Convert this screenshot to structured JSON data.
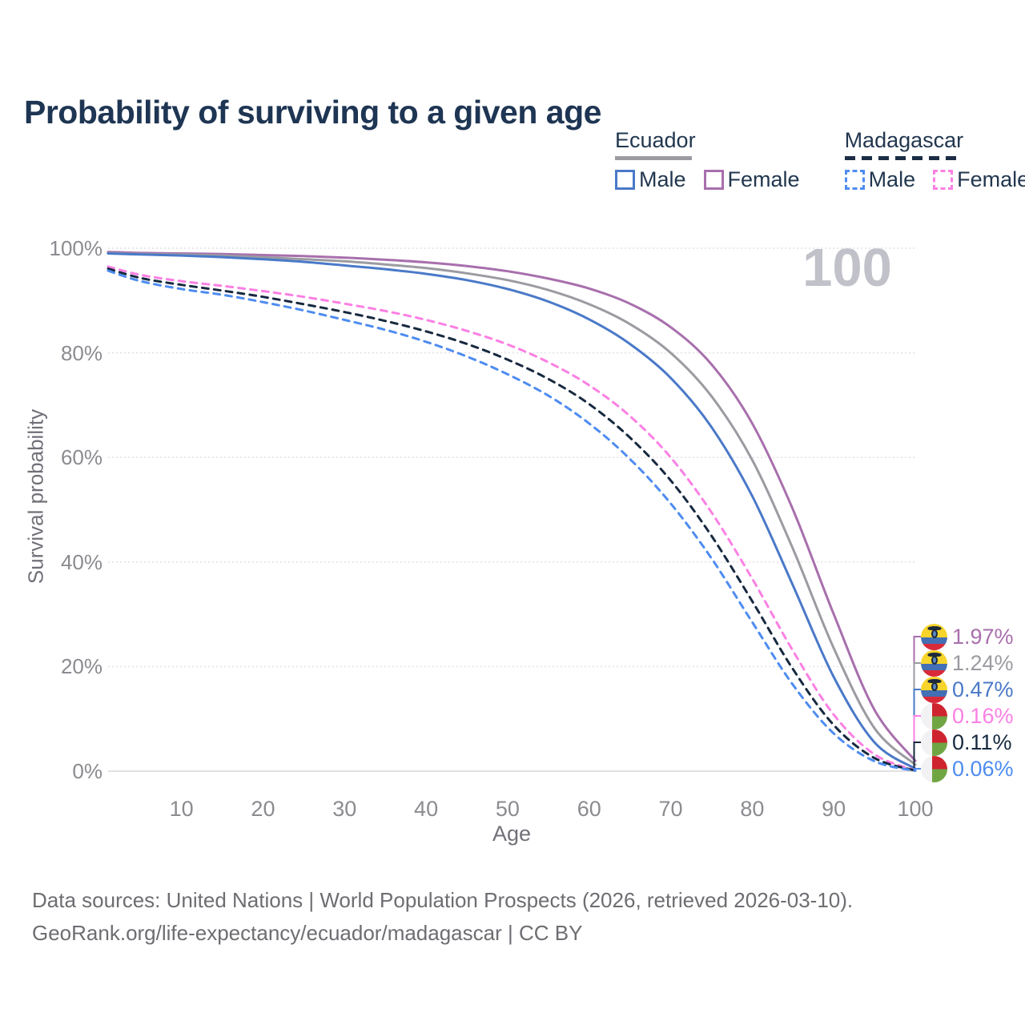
{
  "title": "Probability of surviving to a given age",
  "watermark": "100",
  "legend": {
    "groups": [
      {
        "label": "Ecuador",
        "line_style": "solid",
        "line_color": "#9b9ba1",
        "items": [
          {
            "label": "Male",
            "color": "#4a79c8"
          },
          {
            "label": "Female",
            "color": "#a86fad"
          }
        ]
      },
      {
        "label": "Madagascar",
        "line_style": "dashed",
        "line_color": "#1b2c44",
        "items": [
          {
            "label": "Male",
            "color": "#4e8cf0"
          },
          {
            "label": "Female",
            "color": "#fb80e3"
          }
        ]
      }
    ]
  },
  "chart_data": {
    "type": "line",
    "title": "Probability of surviving to a given age",
    "xlabel": "Age",
    "ylabel": "Survival probability",
    "xlim": [
      1,
      100
    ],
    "ylim": [
      0,
      100
    ],
    "x_ticks": [
      10,
      20,
      30,
      40,
      50,
      60,
      70,
      80,
      90,
      100
    ],
    "y_ticks": [
      0,
      20,
      40,
      60,
      80,
      100
    ],
    "y_tick_labels": [
      "0%",
      "20%",
      "40%",
      "60%",
      "80%",
      "100%"
    ],
    "grid": "horizontal",
    "legend_position": "top-right",
    "hover_age": 100,
    "x": [
      1,
      5,
      10,
      15,
      20,
      25,
      30,
      35,
      40,
      45,
      50,
      55,
      60,
      65,
      70,
      75,
      80,
      85,
      90,
      95,
      100
    ],
    "series": [
      {
        "name": "Ecuador Female",
        "country": "Ecuador",
        "sex": "Female",
        "color": "#a86fad",
        "dash": false,
        "flag": "ecuador",
        "end_label": "1.97%",
        "values": [
          99.3,
          99.1,
          99.0,
          98.9,
          98.7,
          98.5,
          98.2,
          97.8,
          97.3,
          96.6,
          95.6,
          94.2,
          92.3,
          89.4,
          84.9,
          77.8,
          66.5,
          50.0,
          30.0,
          11.7,
          1.97
        ]
      },
      {
        "name": "Ecuador",
        "country": "Ecuador",
        "sex": "Both sexes",
        "color": "#9b9ba1",
        "dash": false,
        "flag": "ecuador",
        "end_label": "1.24%",
        "values": [
          99.1,
          98.9,
          98.8,
          98.6,
          98.3,
          97.9,
          97.5,
          96.9,
          96.2,
          95.2,
          93.9,
          92.0,
          89.3,
          85.5,
          80.0,
          71.7,
          59.5,
          42.5,
          23.5,
          8.2,
          1.24
        ]
      },
      {
        "name": "Ecuador Male",
        "country": "Ecuador",
        "sex": "Male",
        "color": "#4a79c8",
        "dash": false,
        "flag": "ecuador",
        "end_label": "0.47%",
        "values": [
          99.0,
          98.8,
          98.6,
          98.3,
          97.9,
          97.4,
          96.7,
          96.0,
          95.1,
          93.9,
          92.2,
          89.8,
          86.4,
          81.7,
          75.2,
          65.8,
          52.6,
          35.5,
          18.0,
          5.5,
          0.47
        ]
      },
      {
        "name": "Madagascar Female",
        "country": "Madagascar",
        "sex": "Female",
        "color": "#fb80e3",
        "dash": true,
        "flag": "madagascar",
        "end_label": "0.16%",
        "values": [
          96.5,
          94.9,
          93.7,
          92.8,
          91.8,
          90.7,
          89.4,
          88.0,
          86.3,
          84.2,
          81.6,
          78.2,
          73.8,
          67.9,
          60.0,
          49.5,
          36.8,
          23.0,
          10.8,
          3.2,
          0.16
        ]
      },
      {
        "name": "Madagascar",
        "country": "Madagascar",
        "sex": "Both sexes",
        "color": "#17293f",
        "dash": true,
        "flag": "madagascar",
        "end_label": "0.11%",
        "values": [
          96.1,
          94.3,
          93.0,
          91.9,
          90.7,
          89.3,
          87.8,
          86.1,
          84.1,
          81.7,
          78.7,
          75.0,
          70.2,
          63.8,
          55.6,
          45.0,
          32.5,
          19.5,
          8.8,
          2.5,
          0.11
        ]
      },
      {
        "name": "Madagascar Male",
        "country": "Madagascar",
        "sex": "Male",
        "color": "#4e8cf0",
        "dash": true,
        "flag": "madagascar",
        "end_label": "0.06%",
        "values": [
          95.7,
          93.7,
          92.2,
          91.1,
          89.7,
          88.1,
          86.3,
          84.4,
          82.1,
          79.3,
          75.9,
          71.8,
          66.5,
          59.7,
          51.2,
          40.7,
          28.5,
          16.5,
          7.2,
          1.9,
          0.06
        ]
      }
    ]
  },
  "footer": {
    "line1": "Data sources: United Nations | World Population Prospects (2026, retrieved 2026-03-10).",
    "line2": "GeoRank.org/life-expectancy/ecuador/madagascar | CC BY"
  }
}
